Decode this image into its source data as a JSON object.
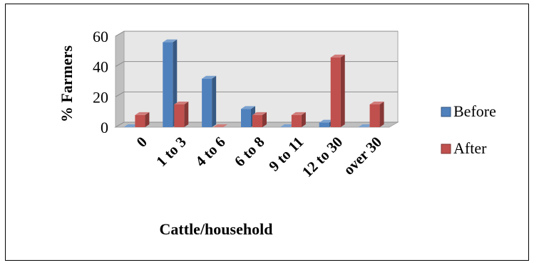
{
  "chart_data": {
    "type": "bar",
    "three_d": true,
    "categories": [
      "0",
      "1 to 3",
      "4 to 6",
      "6 to 8",
      "9 to 11",
      "12 to 30",
      "over 30"
    ],
    "series": [
      {
        "name": "Before",
        "values": [
          0,
          56,
          32,
          12,
          0,
          3,
          0
        ],
        "color": "#4f81bd"
      },
      {
        "name": "After",
        "values": [
          8,
          15,
          0,
          8,
          8,
          46,
          15
        ],
        "color": "#c0504d"
      }
    ],
    "yticks": [
      0,
      20,
      40,
      60
    ],
    "ylim": [
      0,
      60
    ],
    "xlabel": "Cattle/household",
    "ylabel": "% Farmers",
    "grid": true,
    "legend_position": "right"
  }
}
